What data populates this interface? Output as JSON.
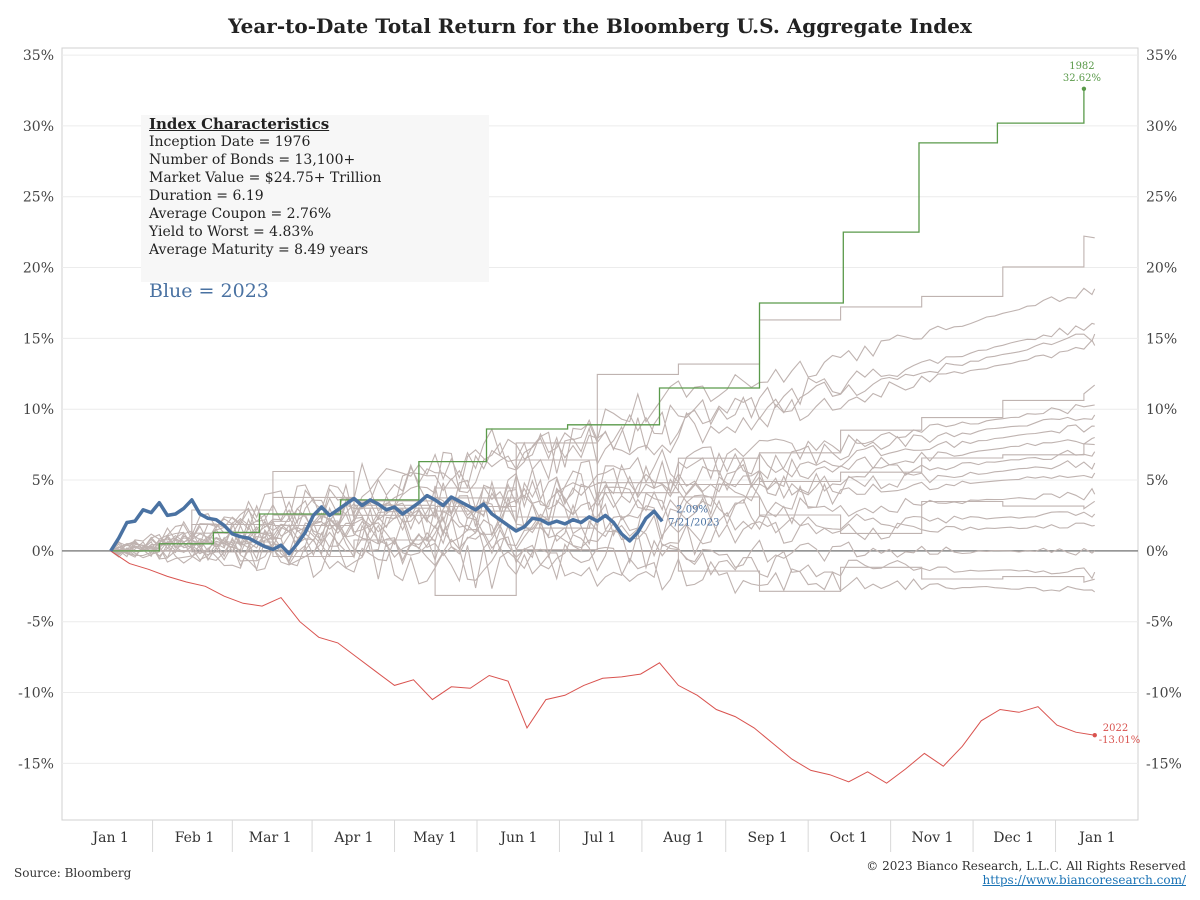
{
  "page": {
    "title": "Year-to-Date Total Return for the Bloomberg U.S. Aggregate Index",
    "source": "Source: Bloomberg",
    "copyright": "© 2023 Bianco Research, L.L.C. All Rights Reserved",
    "url": "https://www.biancoresearch.com/"
  },
  "info_box": {
    "heading": "Index Characteristics",
    "lines": [
      "Inception Date = 1976",
      "Number of Bonds = 13,100+",
      "Market Value = $24.75+ Trillion",
      "Duration = 6.19",
      "Average Coupon = 2.76%",
      "Yield to Worst = 4.83%",
      "Average Maturity = 8.49 years"
    ],
    "note": "Blue = 2023"
  },
  "colors": {
    "current_year": "#4a72a2",
    "best_year": "#5a9a4a",
    "worst_year": "#d9534f",
    "other_years": "#bfb3b0",
    "grid": "#ececec",
    "zero_line": "#888888"
  },
  "chart_data": {
    "type": "line",
    "title": "Year-to-Date Total Return for the Bloomberg U.S. Aggregate Index",
    "x_axis": {
      "type": "month-of-year",
      "tick_labels": [
        "Jan 1",
        "Feb 1",
        "Mar 1",
        "Apr 1",
        "May 1",
        "Jun 1",
        "Jul 1",
        "Aug 1",
        "Sep 1",
        "Oct 1",
        "Nov 1",
        "Dec 1",
        "Jan 1"
      ],
      "tick_day_of_year": [
        0,
        31,
        59,
        90,
        120,
        151,
        181,
        212,
        243,
        273,
        304,
        334,
        365
      ],
      "range": [
        -18,
        380
      ]
    },
    "y_axis": {
      "tick_labels": [
        "35%",
        "30%",
        "25%",
        "20%",
        "15%",
        "10%",
        "5%",
        "0%",
        "-5%",
        "-10%",
        "-15%"
      ],
      "ticks": [
        35,
        30,
        25,
        20,
        15,
        10,
        5,
        0,
        -5,
        -10,
        -15
      ],
      "range": [
        -19,
        35.5
      ],
      "unit": "%",
      "both_sides": true
    },
    "grid": true,
    "series": [
      {
        "name": "2023",
        "role": "current",
        "day_of_year": [
          0,
          3,
          6,
          9,
          12,
          15,
          18,
          21,
          24,
          27,
          30,
          33,
          36,
          39,
          42,
          45,
          48,
          51,
          54,
          57,
          60,
          63,
          66,
          69,
          72,
          75,
          78,
          81,
          84,
          87,
          90,
          93,
          96,
          99,
          102,
          105,
          108,
          111,
          114,
          117,
          120,
          123,
          126,
          129,
          132,
          135,
          138,
          141,
          144,
          147,
          150,
          153,
          156,
          159,
          162,
          165,
          168,
          171,
          174,
          177,
          180,
          183,
          186,
          189,
          192,
          195,
          198,
          201,
          204
        ],
        "values": [
          0,
          0.9,
          2.0,
          2.1,
          2.9,
          2.7,
          3.4,
          2.5,
          2.6,
          3.0,
          3.6,
          2.6,
          2.3,
          2.2,
          1.8,
          1.2,
          1.0,
          0.9,
          0.6,
          0.3,
          0.1,
          0.4,
          -0.2,
          0.5,
          1.3,
          2.5,
          3.1,
          2.5,
          2.9,
          3.3,
          3.7,
          3.2,
          3.6,
          3.3,
          2.9,
          3.1,
          2.6,
          3.0,
          3.4,
          3.9,
          3.6,
          3.2,
          3.8,
          3.5,
          3.2,
          2.9,
          3.3,
          2.6,
          2.2,
          1.8,
          1.4,
          1.7,
          2.3,
          2.2,
          1.9,
          2.1,
          1.9,
          2.2,
          2.0,
          2.4,
          2.1,
          2.5,
          2.0,
          1.2,
          0.7,
          1.3,
          2.3,
          2.8,
          2.09
        ],
        "end_label": "2.09%",
        "end_date": "7/21/2023"
      },
      {
        "name": "1982",
        "role": "best",
        "step_days": [
          0,
          18,
          38,
          55,
          85,
          114,
          139,
          169,
          203,
          240,
          271,
          299,
          328,
          360
        ],
        "values": [
          0,
          0.5,
          1.3,
          2.6,
          3.6,
          6.3,
          8.6,
          8.9,
          11.5,
          17.5,
          22.5,
          28.8,
          30.2,
          32.62
        ],
        "end_label": "32.62%"
      },
      {
        "name": "2022",
        "role": "worst",
        "day_of_year": [
          0,
          7,
          14,
          21,
          28,
          35,
          42,
          49,
          56,
          63,
          70,
          77,
          84,
          91,
          98,
          105,
          112,
          119,
          126,
          133,
          140,
          147,
          154,
          161,
          168,
          175,
          182,
          189,
          196,
          203,
          210,
          217,
          224,
          231,
          238,
          245,
          252,
          259,
          266,
          273,
          280,
          287,
          294,
          301,
          308,
          315,
          322,
          329,
          336,
          343,
          350,
          357,
          364
        ],
        "values": [
          0,
          -0.9,
          -1.3,
          -1.8,
          -2.2,
          -2.5,
          -3.2,
          -3.7,
          -3.9,
          -3.3,
          -5.0,
          -6.1,
          -6.5,
          -7.5,
          -8.5,
          -9.5,
          -9.1,
          -10.5,
          -9.6,
          -9.7,
          -8.8,
          -9.2,
          -12.5,
          -10.5,
          -10.2,
          -9.5,
          -9.0,
          -8.9,
          -8.7,
          -7.9,
          -9.5,
          -10.2,
          -11.2,
          -11.7,
          -12.5,
          -13.6,
          -14.7,
          -15.5,
          -15.8,
          -16.3,
          -15.6,
          -16.4,
          -15.4,
          -14.3,
          -15.2,
          -13.8,
          -12.0,
          -11.2,
          -11.4,
          -11.0,
          -12.3,
          -12.8,
          -13.01
        ],
        "end_label": "-13.01%"
      },
      {
        "name": "",
        "role": "other",
        "final": 22.1
      },
      {
        "name": "",
        "role": "other",
        "final": 18.5
      },
      {
        "name": "",
        "role": "other",
        "final": 16.0
      },
      {
        "name": "",
        "role": "other",
        "final": 15.3
      },
      {
        "name": "",
        "role": "other",
        "final": 14.5
      },
      {
        "name": "",
        "role": "other",
        "final": 11.7
      },
      {
        "name": "",
        "role": "other",
        "final": 10.3
      },
      {
        "name": "",
        "role": "other",
        "final": 9.6
      },
      {
        "name": "",
        "role": "other",
        "final": 8.8
      },
      {
        "name": "",
        "role": "other",
        "final": 8.0
      },
      {
        "name": "",
        "role": "other",
        "final": 7.5
      },
      {
        "name": "",
        "role": "other",
        "final": 7.0
      },
      {
        "name": "",
        "role": "other",
        "final": 6.2
      },
      {
        "name": "",
        "role": "other",
        "final": 5.5
      },
      {
        "name": "",
        "role": "other",
        "final": 4.0
      },
      {
        "name": "",
        "role": "other",
        "final": 3.5
      },
      {
        "name": "",
        "role": "other",
        "final": 2.6
      },
      {
        "name": "",
        "role": "other",
        "final": 1.8
      },
      {
        "name": "",
        "role": "other",
        "final": 0.0
      },
      {
        "name": "",
        "role": "other",
        "final": -1.5
      },
      {
        "name": "",
        "role": "other",
        "final": -2.0
      },
      {
        "name": "",
        "role": "other",
        "final": -2.9
      }
    ]
  }
}
